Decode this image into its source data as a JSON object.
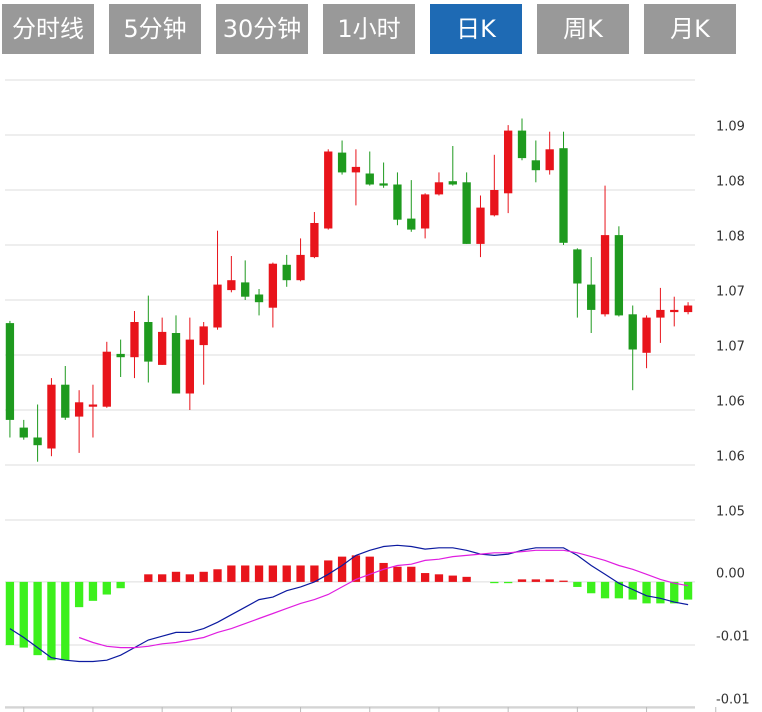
{
  "tabs": [
    "分时线",
    "5分钟",
    "30分钟",
    "1小时",
    "日K",
    "周K",
    "月K"
  ],
  "active_tab": 4,
  "chart_data": [
    {
      "type": "candlestick",
      "up_color": "#e8141b",
      "down_color": "#1e9a1e",
      "grid": true,
      "ylim": [
        1.055,
        1.095
      ],
      "yticks": [
        {
          "value": 1.055,
          "label": "1.05"
        },
        1.06,
        {
          "value": 1.065,
          "label": "1.06"
        },
        1.07,
        {
          "value": 1.075,
          "label": "1.07"
        },
        1.08,
        {
          "value": 1.085,
          "label": "1.08"
        },
        1.09
      ],
      "open": [
        1.0729,
        1.0634,
        1.0625,
        1.0615,
        1.0673,
        1.0644,
        1.0653,
        1.0653,
        1.0701,
        1.0698,
        1.073,
        1.0691,
        1.072,
        1.0665,
        1.0709,
        1.0725,
        1.0759,
        1.0766,
        1.0755,
        1.0743,
        1.0782,
        1.0768,
        1.0789,
        1.0815,
        1.0884,
        1.0866,
        1.0865,
        1.0856,
        1.0855,
        1.0824,
        1.0815,
        1.0846,
        1.0858,
        1.0857,
        1.0801,
        1.0827,
        1.0847,
        1.0904,
        1.0877,
        1.0868,
        1.0888,
        1.0796,
        1.0764,
        1.0737,
        1.0809,
        1.0737,
        1.0702,
        1.0734,
        1.0739,
        1.0739
      ],
      "high": [
        1.0731,
        1.0641,
        1.0655,
        1.0679,
        1.069,
        1.0668,
        1.0673,
        1.0712,
        1.0714,
        1.074,
        1.0754,
        1.0734,
        1.0736,
        1.0734,
        1.073,
        1.0813,
        1.079,
        1.0786,
        1.076,
        1.0784,
        1.0791,
        1.0806,
        1.083,
        1.0887,
        1.0895,
        1.0887,
        1.0885,
        1.0875,
        1.0866,
        1.0859,
        1.0847,
        1.0866,
        1.089,
        1.0866,
        1.0845,
        1.0882,
        1.0909,
        1.0915,
        1.0895,
        1.0903,
        1.0903,
        1.0797,
        1.0789,
        1.0854,
        1.0817,
        1.0745,
        1.0736,
        1.0761,
        1.0753,
        1.0748
      ],
      "low": [
        1.0625,
        1.0623,
        1.0603,
        1.0608,
        1.0641,
        1.0611,
        1.0625,
        1.0652,
        1.068,
        1.0679,
        1.0675,
        1.0691,
        1.0665,
        1.065,
        1.0673,
        1.0723,
        1.0757,
        1.075,
        1.0736,
        1.0725,
        1.0762,
        1.0767,
        1.0788,
        1.0814,
        1.0864,
        1.0836,
        1.0854,
        1.0852,
        1.0818,
        1.0812,
        1.0806,
        1.0845,
        1.0854,
        1.0801,
        1.0789,
        1.0826,
        1.0829,
        1.0877,
        1.0857,
        1.0864,
        1.08,
        1.0734,
        1.072,
        1.0735,
        1.0735,
        1.0668,
        1.0688,
        1.0711,
        1.0726,
        1.0737
      ],
      "close": [
        1.0641,
        1.0625,
        1.0618,
        1.0673,
        1.0643,
        1.0657,
        1.0655,
        1.0703,
        1.0698,
        1.073,
        1.0694,
        1.0721,
        1.0665,
        1.0714,
        1.0726,
        1.0764,
        1.0768,
        1.0753,
        1.0748,
        1.0783,
        1.0768,
        1.0791,
        1.082,
        1.0885,
        1.0866,
        1.0871,
        1.0855,
        1.0854,
        1.0823,
        1.0814,
        1.0846,
        1.0857,
        1.0855,
        1.0801,
        1.0834,
        1.085,
        1.0904,
        1.0879,
        1.0868,
        1.0887,
        1.0802,
        1.0765,
        1.0741,
        1.0809,
        1.0736,
        1.0705,
        1.0734,
        1.0741,
        1.0741,
        1.0745
      ]
    },
    {
      "type": "macd",
      "up_color": "#e8141b",
      "down_color": "#3cf01c",
      "grid": true,
      "ylim": [
        -0.0103,
        0.0049
      ],
      "yticks": [
        {
          "value": 0,
          "label": "0.00"
        },
        {
          "value": -0.005,
          "label": "-0.01"
        },
        -0.01
      ],
      "values": [
        -0.005,
        -0.0052,
        -0.0058,
        -0.0062,
        -0.0062,
        -0.002,
        -0.0015,
        -0.001,
        -0.0005,
        0,
        0.0006,
        0.0006,
        0.0008,
        0.0006,
        0.0008,
        0.001,
        0.0013,
        0.0013,
        0.0013,
        0.0013,
        0.0013,
        0.0013,
        0.0013,
        0.0017,
        0.002,
        0.0021,
        0.002,
        0.0015,
        0.0012,
        0.0012,
        0.0007,
        0.0006,
        0.0005,
        0.0004,
        0,
        -0.0001,
        -0.0001,
        0.0002,
        0.0002,
        0.0002,
        0.0001,
        -0.0004,
        -0.0009,
        -0.0013,
        -0.0013,
        -0.0014,
        -0.0017,
        -0.0017,
        -0.0017,
        -0.0014
      ],
      "series": [
        {
          "color": "#0c1aa0",
          "values": [
            -0.0037,
            -0.0044,
            -0.0052,
            -0.006,
            -0.0062,
            -0.0063,
            -0.0063,
            -0.0062,
            -0.0058,
            -0.0052,
            -0.0046,
            -0.0043,
            -0.004,
            -0.004,
            -0.0037,
            -0.0032,
            -0.0026,
            -0.002,
            -0.0014,
            -0.0012,
            -0.0007,
            -0.0004,
            0,
            0.0006,
            0.0013,
            0.0021,
            0.0025,
            0.0028,
            0.0029,
            0.0028,
            0.0026,
            0.0027,
            0.0027,
            0.0025,
            0.0022,
            0.0021,
            0.0022,
            0.0025,
            0.0027,
            0.0027,
            0.0027,
            0.0021,
            0.0013,
            0.0006,
            -0.0001,
            -0.0006,
            -0.0011,
            -0.0013,
            -0.0016,
            -0.0018
          ]
        },
        {
          "color": "#e01ee0",
          "values": [
            null,
            null,
            null,
            null,
            null,
            -0.0044,
            -0.0048,
            -0.0051,
            -0.0052,
            -0.0052,
            -0.0051,
            -0.0049,
            -0.0048,
            -0.0046,
            -0.0044,
            -0.004,
            -0.0037,
            -0.0033,
            -0.0029,
            -0.0025,
            -0.0021,
            -0.0017,
            -0.0014,
            -0.001,
            -0.0004,
            0.0002,
            0.0006,
            0.001,
            0.0013,
            0.0014,
            0.0017,
            0.0018,
            0.002,
            0.0021,
            0.0022,
            0.0023,
            0.0023,
            0.0024,
            0.0025,
            0.0025,
            0.0025,
            0.0023,
            0.002,
            0.0017,
            0.0013,
            0.001,
            0.0006,
            0.0002,
            -0.0001,
            -0.0003
          ]
        }
      ]
    }
  ]
}
